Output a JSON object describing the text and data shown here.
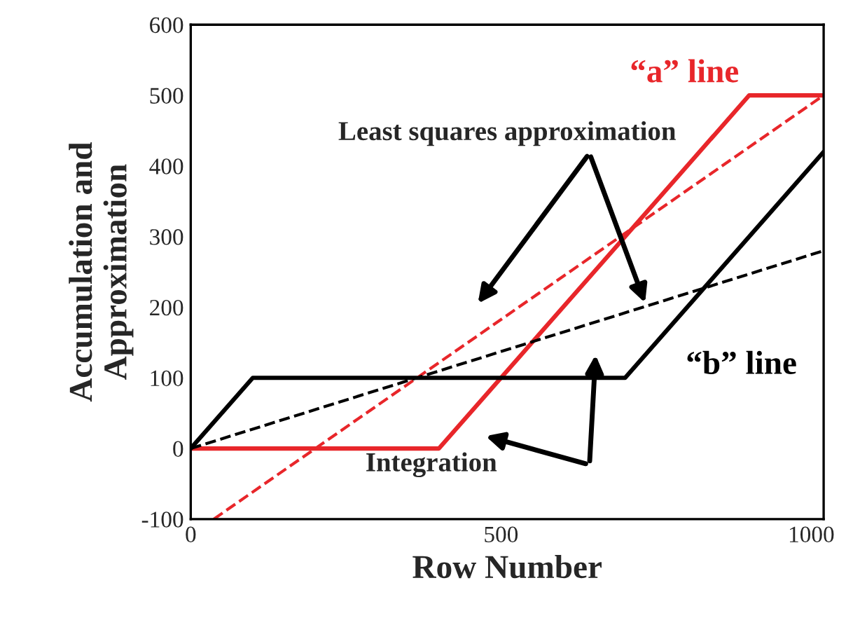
{
  "chart_data": {
    "type": "line",
    "xlabel": "Row Number",
    "ylabel": "Accumulation and\nApproximation",
    "xlim": [
      0,
      1020
    ],
    "ylim": [
      -100,
      600
    ],
    "xticks": [
      0,
      500,
      1000
    ],
    "yticks": [
      -100,
      0,
      100,
      200,
      300,
      400,
      500,
      600
    ],
    "grid": false,
    "legend": false,
    "marker": "none",
    "series": [
      {
        "name": "“a” line",
        "color": "#e8262a",
        "x": [
          0,
          400,
          900,
          1020
        ],
        "values": [
          0,
          0,
          500,
          500
        ],
        "line_style": "solid"
      },
      {
        "name": "“b” line",
        "color": "#000000",
        "x": [
          0,
          100,
          700,
          1020
        ],
        "values": [
          0,
          100,
          100,
          420
        ],
        "line_style": "solid"
      },
      {
        "color": "#e8262a",
        "x": [
          37,
          1020
        ],
        "values": [
          -100,
          500
        ],
        "line_style": "dashed"
      },
      {
        "color": "#000000",
        "x": [
          0,
          1020
        ],
        "values": [
          0,
          280
        ],
        "line_style": "dashed"
      }
    ],
    "annotations": [
      "Least squares approximation",
      "Integration"
    ]
  }
}
